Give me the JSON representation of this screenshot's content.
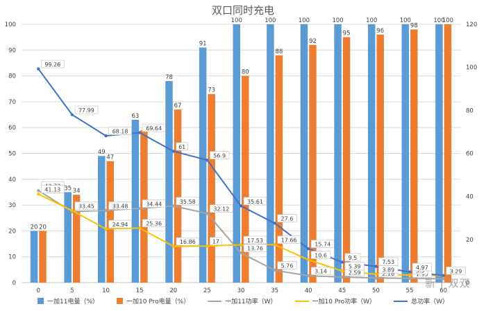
{
  "chart_data": {
    "type": "bar",
    "title": "双口同时充电",
    "x": [
      "0",
      "5",
      "10",
      "15",
      "20",
      "25",
      "30",
      "35",
      "40",
      "45",
      "50",
      "55",
      "60"
    ],
    "y_left": {
      "ticks": [
        "0",
        "10",
        "20",
        "30",
        "40",
        "50",
        "60",
        "70",
        "80",
        "90",
        "100"
      ],
      "ylim": [
        0,
        100
      ]
    },
    "y_right": {
      "ticks": [
        "0",
        "20",
        "40",
        "60",
        "80",
        "100",
        "120"
      ],
      "ylim": [
        0,
        120
      ]
    },
    "grid": true,
    "legend_position": "bottom",
    "series": [
      {
        "name": "一加11电量（%）",
        "kind": "bar",
        "axis": "left",
        "color": "#5b9bd5",
        "values": [
          20,
          35,
          49,
          63,
          78,
          91,
          100,
          100,
          100,
          100,
          100,
          100,
          100
        ],
        "labels": [
          "20",
          "35",
          "49",
          "63",
          "78",
          "91",
          "100",
          "100",
          "100",
          "100",
          "100",
          "100",
          "100"
        ]
      },
      {
        "name": "一加10 Pro电量（%）",
        "kind": "bar",
        "axis": "left",
        "color": "#ed7d31",
        "values": [
          20,
          34,
          47,
          59,
          67,
          73,
          80,
          88,
          92,
          95,
          96,
          98,
          100
        ],
        "labels": [
          "20",
          "34",
          "47",
          "",
          "67",
          "73",
          "80",
          "88",
          "92",
          "95",
          "96",
          "98",
          "100"
        ]
      },
      {
        "name": "一加11功率（W）",
        "kind": "line",
        "axis": "right",
        "color": "#a5a5a5",
        "values": [
          42.73,
          32.93,
          33.48,
          34.44,
          35.58,
          32.12,
          13.76,
          5.76,
          3.14,
          2.59,
          2.16,
          1.93,
          1.8
        ],
        "labels": [
          "42.73",
          "32.93",
          "33.48",
          "34.44",
          "35.58",
          "32.12",
          "13.76",
          "5.76",
          "3.14",
          "2.59",
          "2.16",
          "1.93",
          ""
        ]
      },
      {
        "name": "一加10 Pro功率（W）",
        "kind": "line",
        "axis": "right",
        "color": "#ffc000",
        "values": [
          41.13,
          33.45,
          24.94,
          25.36,
          16.86,
          17,
          17.53,
          17.66,
          10.6,
          5.39,
          3.89,
          3.5,
          3.29
        ],
        "labels": [
          "41.13",
          "33.45",
          "24.94",
          "25.36",
          "16.86",
          "17",
          "17.53",
          "17.66",
          "10.6",
          "5.39",
          "3.89",
          "3.5",
          "3.29"
        ]
      },
      {
        "name": "总功率（W）",
        "kind": "line",
        "axis": "right",
        "color": "#4472c4",
        "values": [
          99.26,
          77.99,
          68.18,
          69.64,
          61,
          56.9,
          35.61,
          27.6,
          15.74,
          9.5,
          7.53,
          4.97,
          3.29
        ],
        "labels": [
          "99.26",
          "77.99",
          "68.18",
          "69.64",
          "61",
          "56.9",
          "35.61",
          "27.6",
          "15.74",
          "9.5",
          "7.53",
          "4.97",
          ""
        ]
      }
    ]
  },
  "watermark": "新 值 么 值 得 买",
  "watermark_display": "新 | 双双"
}
